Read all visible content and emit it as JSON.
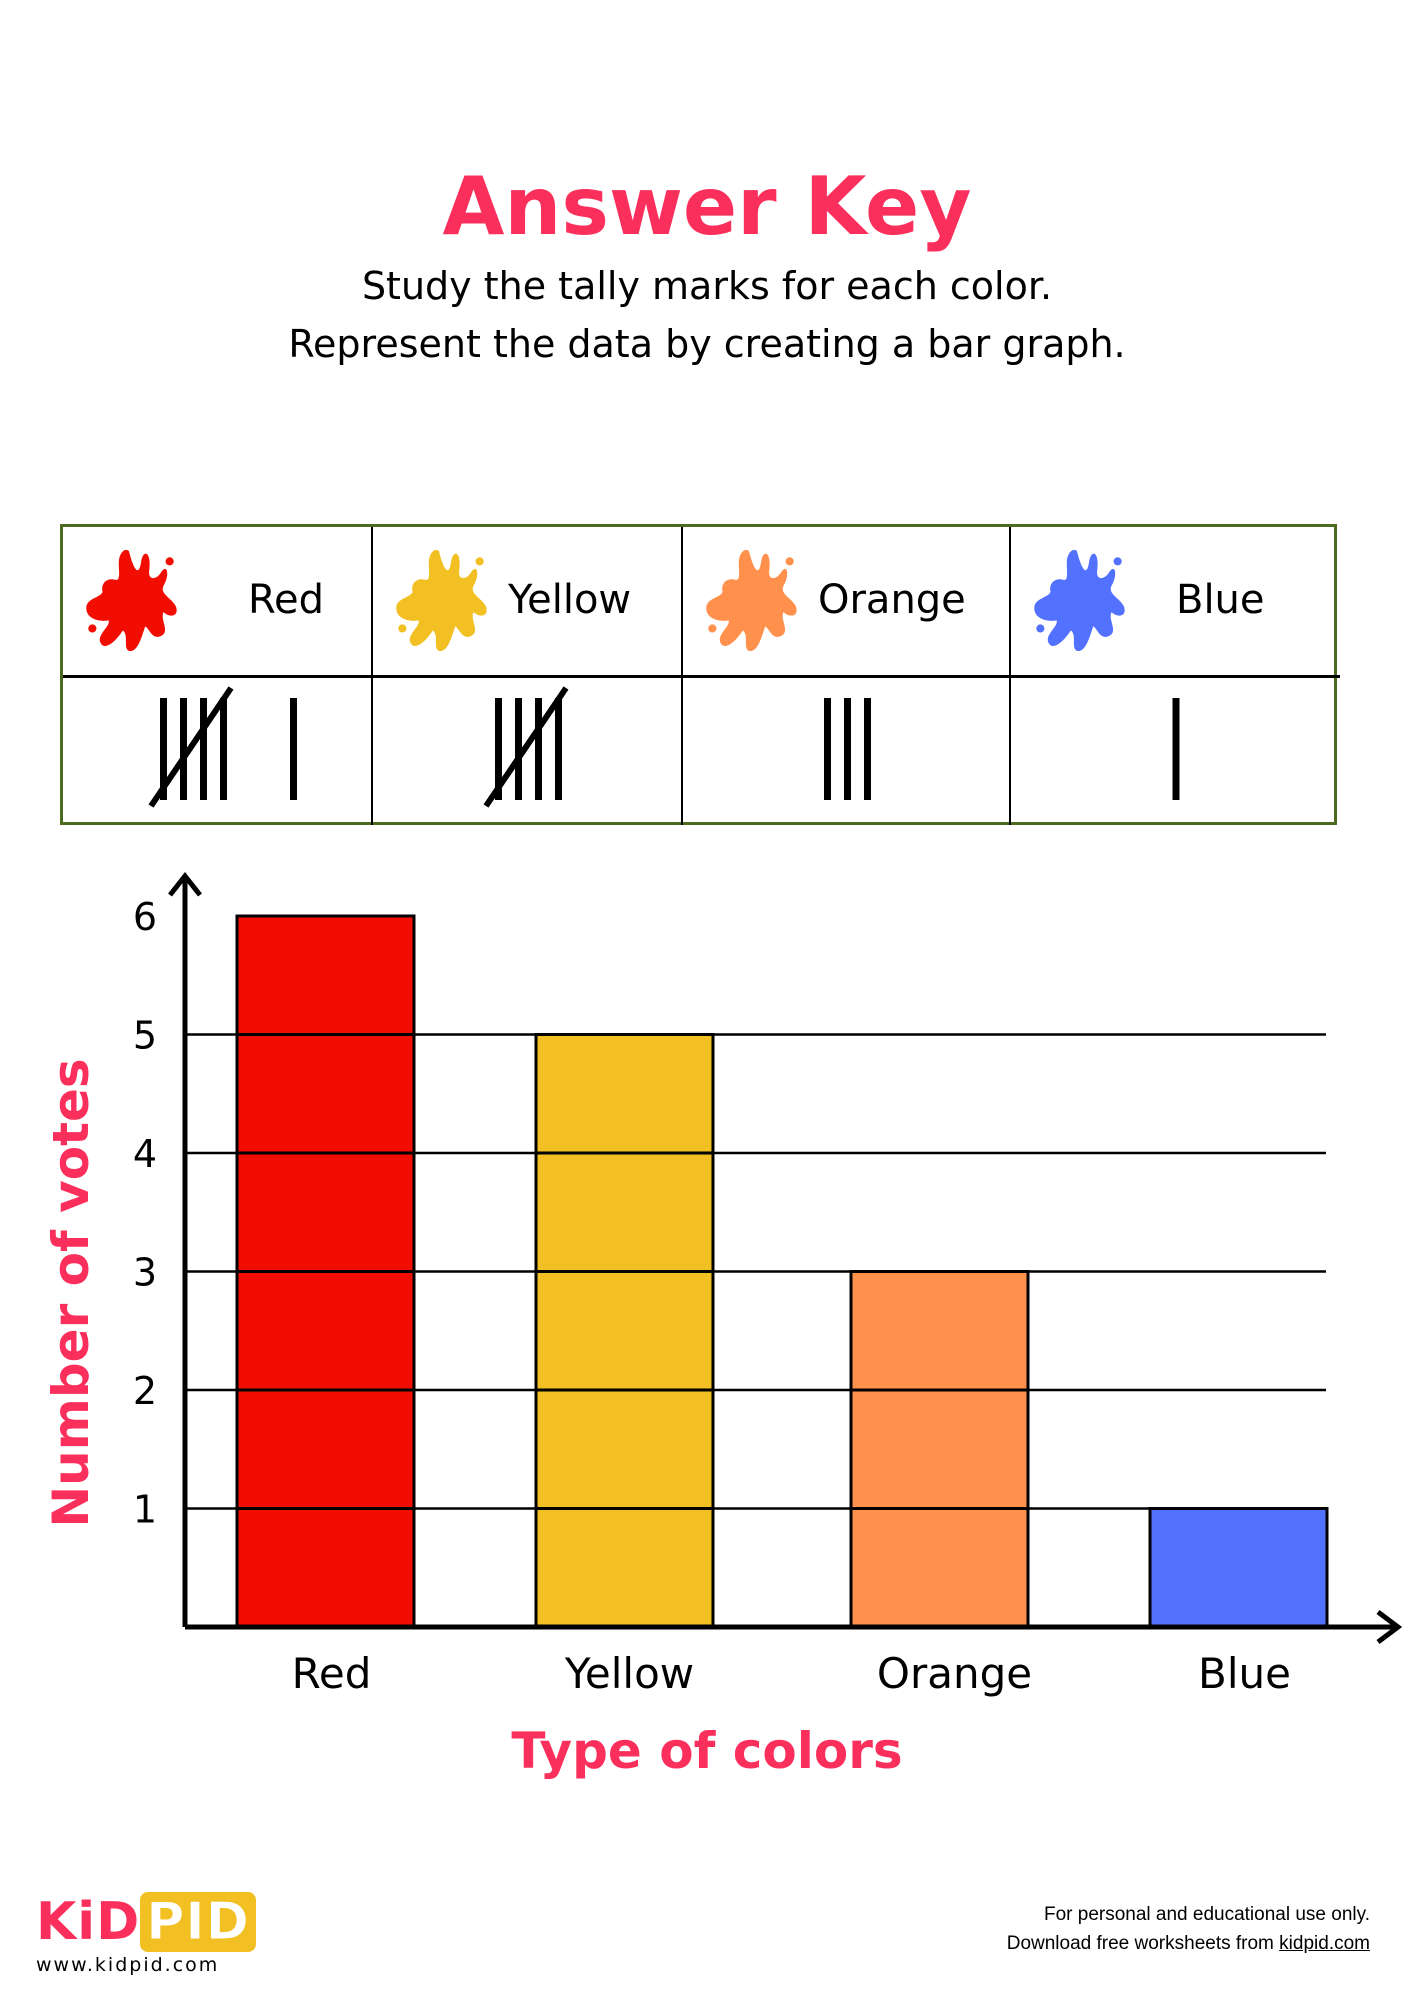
{
  "header": {
    "title": "Answer Key",
    "instructions": [
      "Study the tally marks for each color.",
      "Represent the data by creating a bar graph."
    ]
  },
  "tally_table": {
    "items": [
      {
        "label": "Red",
        "color": "#f20d02",
        "tally": 6,
        "icon": "paint-splat-icon"
      },
      {
        "label": "Yellow",
        "color": "#f2c022",
        "tally": 5,
        "icon": "paint-splat-icon"
      },
      {
        "label": "Orange",
        "color": "#ff914d",
        "tally": 3,
        "icon": "paint-splat-icon"
      },
      {
        "label": "Blue",
        "color": "#5271ff",
        "tally": 1,
        "icon": "paint-splat-icon"
      }
    ],
    "border_color": "#4d6b1f"
  },
  "chart_data": {
    "type": "bar",
    "categories": [
      "Red",
      "Yellow",
      "Orange",
      "Blue"
    ],
    "values": [
      6,
      5,
      3,
      1
    ],
    "colors": [
      "#f20d02",
      "#f2c022",
      "#ff914d",
      "#5271ff"
    ],
    "xlabel": "Type of colors",
    "ylabel": "Number of votes",
    "yticks": [
      1,
      2,
      3,
      4,
      5,
      6
    ],
    "ylim": [
      0,
      6
    ],
    "grid": true,
    "label_color": "#fb2f5c"
  },
  "footer": {
    "logo_left": "KiD",
    "logo_right": "PID",
    "website": "www.kidpid.com",
    "note_line1": "For personal and educational use only.",
    "note_line2_prefix": "Download free worksheets from ",
    "note_link": "kidpid.com"
  }
}
